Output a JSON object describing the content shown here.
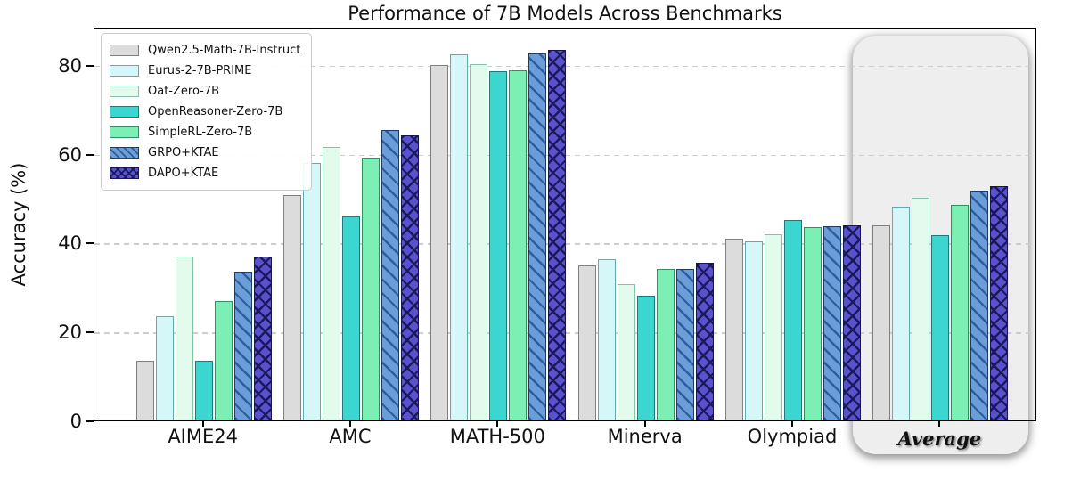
{
  "title": "Performance of 7B Models Across Benchmarks",
  "ylabel": "Accuracy (%)",
  "chart_data": {
    "type": "bar",
    "title": "Performance of 7B Models Across Benchmarks",
    "xlabel": "",
    "ylabel": "Accuracy (%)",
    "ylim": [
      0,
      88.6
    ],
    "y_ticks": [
      0,
      20,
      40,
      60,
      80
    ],
    "grid": "horizontal dashed lines at 20, 40, 60, 80",
    "legend_position": "upper left",
    "categories": [
      "AIME24",
      "AMC",
      "MATH-500",
      "Minerva",
      "Olympiad",
      "Average"
    ],
    "series": [
      {
        "name": "Qwen2.5-Math-7B-Instruct",
        "color": "#dcdcdc",
        "edge_color": "#808080",
        "hatch": "none",
        "hatch_color": "",
        "values": [
          13.3,
          50.6,
          79.8,
          34.6,
          40.7,
          43.8
        ]
      },
      {
        "name": "Eurus-2-7B-PRIME",
        "color": "#d6f7f8",
        "edge_color": "#62aab1",
        "hatch": "none",
        "hatch_color": "",
        "values": [
          23.3,
          57.8,
          82.2,
          36.0,
          40.0,
          47.9
        ]
      },
      {
        "name": "Oat-Zero-7B",
        "color": "#e2fbec",
        "edge_color": "#86c2ab",
        "hatch": "none",
        "hatch_color": "",
        "values": [
          36.7,
          61.4,
          80.0,
          30.5,
          41.6,
          50.0
        ]
      },
      {
        "name": "OpenReasoner-Zero-7B",
        "color": "#3bd6cf",
        "edge_color": "#1b7b78",
        "hatch": "none",
        "hatch_color": "",
        "values": [
          13.3,
          45.8,
          78.4,
          27.9,
          44.9,
          41.5
        ]
      },
      {
        "name": "SimpleRL-Zero-7B",
        "color": "#7cf0b4",
        "edge_color": "#2e8f63",
        "hatch": "none",
        "hatch_color": "",
        "values": [
          26.7,
          59.0,
          78.6,
          33.8,
          43.3,
          48.3
        ]
      },
      {
        "name": "GRPO+KTAE",
        "color": "#6b9dd8",
        "edge_color": "#1d3b66",
        "hatch": "diagonal",
        "hatch_color": "#2e5d9e",
        "values": [
          33.3,
          65.1,
          82.4,
          33.8,
          43.6,
          51.6
        ]
      },
      {
        "name": "DAPO+KTAE",
        "color": "#5a51ce",
        "edge_color": "#18164f",
        "hatch": "cross",
        "hatch_color": "#1a1a5a",
        "values": [
          36.7,
          63.9,
          83.2,
          35.2,
          43.7,
          52.5
        ]
      }
    ],
    "highlight": {
      "category": "Average",
      "style": "rounded light-gray box with drop shadow",
      "box_color": "#eeeeee"
    }
  }
}
